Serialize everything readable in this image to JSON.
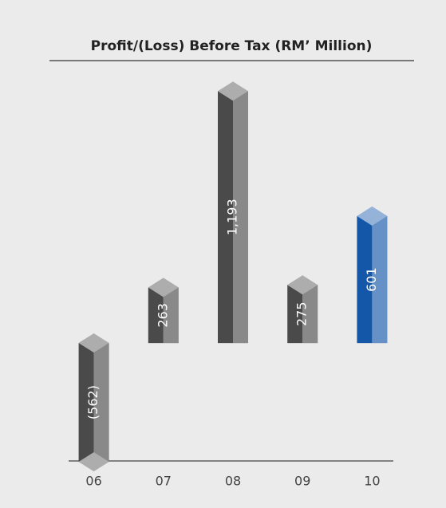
{
  "chart_data": {
    "type": "bar",
    "title": "Profit/(Loss) Before Tax (RM’ Million)",
    "categories": [
      "06",
      "07",
      "08",
      "09",
      "10"
    ],
    "values": [
      -562,
      263,
      1193,
      275,
      601
    ],
    "value_labels": [
      "(562)",
      "263",
      "1,193",
      "275",
      "601"
    ],
    "colors": [
      "#4a4a4a",
      "#4a4a4a",
      "#4a4a4a",
      "#4a4a4a",
      "#1456a8"
    ],
    "ylim": [
      -600,
      1300
    ]
  }
}
